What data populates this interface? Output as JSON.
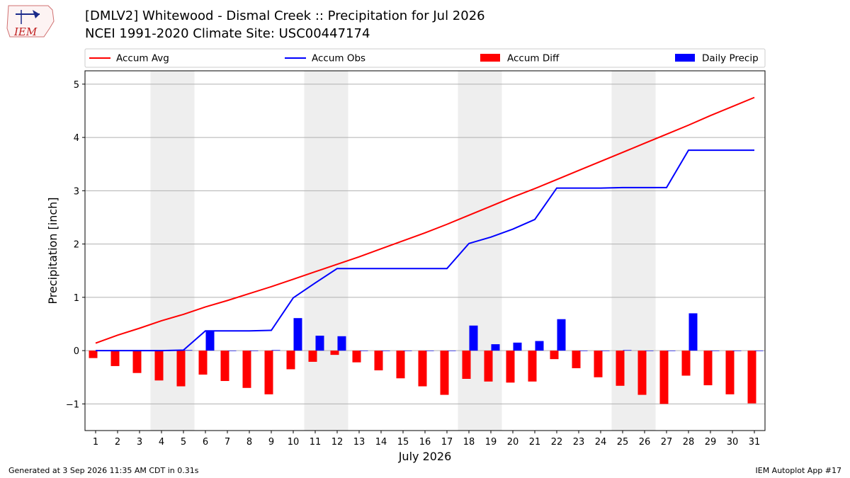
{
  "header": {
    "title_line1": "[DMLV2] Whitewood - Dismal Creek :: Precipitation for Jul 2026",
    "title_line2": "NCEI 1991-2020 Climate Site: USC00447174",
    "logo_text": "IEM"
  },
  "footer": {
    "generated": "Generated at 3 Sep 2026 11:35 AM CDT in 0.31s",
    "app": "IEM Autoplot App #17"
  },
  "colors": {
    "accum_avg": "#ff0000",
    "accum_obs": "#0000ff",
    "accum_diff": "#ff0000",
    "daily_precip": "#0000ff",
    "weekend_shade": "#eeeeee"
  },
  "chart_data": {
    "type": "bar",
    "xlabel": "July 2026",
    "ylabel": "Precipitation [inch]",
    "ylim": [
      -1.5,
      5.25
    ],
    "yticks": [
      -1,
      0,
      1,
      2,
      3,
      4,
      5
    ],
    "grid": true,
    "legend_placement": "top",
    "categories": [
      "1",
      "2",
      "3",
      "4",
      "5",
      "6",
      "7",
      "8",
      "9",
      "10",
      "11",
      "12",
      "13",
      "14",
      "15",
      "16",
      "17",
      "18",
      "19",
      "20",
      "21",
      "22",
      "23",
      "24",
      "25",
      "26",
      "27",
      "28",
      "29",
      "30",
      "31"
    ],
    "shaded_weekends": [
      [
        4,
        5
      ],
      [
        11,
        12
      ],
      [
        18,
        19
      ],
      [
        25,
        26
      ]
    ],
    "series": [
      {
        "name": "Accum Avg",
        "kind": "line",
        "values": [
          0.14,
          0.29,
          0.42,
          0.56,
          0.68,
          0.82,
          0.94,
          1.07,
          1.2,
          1.34,
          1.48,
          1.62,
          1.76,
          1.91,
          2.06,
          2.21,
          2.37,
          2.54,
          2.71,
          2.88,
          3.04,
          3.21,
          3.38,
          3.55,
          3.72,
          3.89,
          4.06,
          4.23,
          4.41,
          4.58,
          4.75
        ]
      },
      {
        "name": "Accum Obs",
        "kind": "line",
        "values": [
          0.0,
          0.0,
          0.0,
          0.0,
          0.01,
          0.37,
          0.37,
          0.37,
          0.38,
          0.99,
          1.27,
          1.54,
          1.54,
          1.54,
          1.54,
          1.54,
          1.54,
          2.01,
          2.13,
          2.28,
          2.46,
          3.05,
          3.05,
          3.05,
          3.06,
          3.06,
          3.06,
          3.76,
          3.76,
          3.76,
          3.76
        ]
      },
      {
        "name": "Accum Diff",
        "kind": "bar",
        "values": [
          -0.14,
          -0.29,
          -0.42,
          -0.56,
          -0.67,
          -0.45,
          -0.57,
          -0.7,
          -0.82,
          -0.35,
          -0.21,
          -0.08,
          -0.22,
          -0.37,
          -0.52,
          -0.67,
          -0.83,
          -0.53,
          -0.58,
          -0.6,
          -0.58,
          -0.16,
          -0.33,
          -0.5,
          -0.66,
          -0.83,
          -1.0,
          -0.47,
          -0.65,
          -0.82,
          -0.99
        ]
      },
      {
        "name": "Daily Precip",
        "kind": "bar",
        "values": [
          0.0,
          0.0,
          0.0,
          0.0,
          0.01,
          0.36,
          0.0,
          0.0,
          0.01,
          0.61,
          0.28,
          0.27,
          0.0,
          0.0,
          0.0,
          0.0,
          0.0,
          0.47,
          0.12,
          0.15,
          0.18,
          0.59,
          0.0,
          0.0,
          0.01,
          0.0,
          0.0,
          0.7,
          0.0,
          0.0,
          0.0
        ]
      }
    ]
  }
}
